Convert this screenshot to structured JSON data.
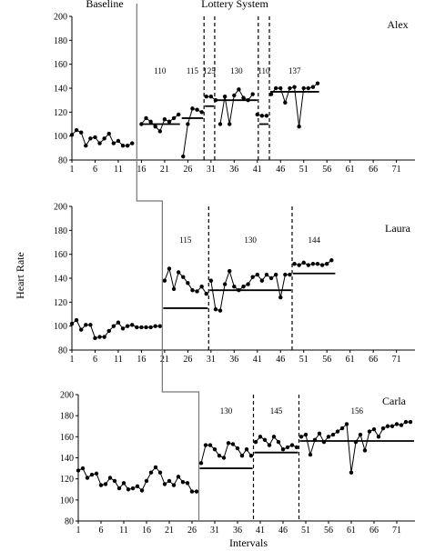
{
  "header": {
    "baseline": "Baseline",
    "phase": "Lottery System"
  },
  "ylabel": "Heart Rate",
  "xlabel": "Intervals",
  "chart_data": [
    {
      "type": "line",
      "participant": "Alex",
      "xlim": [
        1,
        75
      ],
      "ylim": [
        80,
        200
      ],
      "xticks": [
        1,
        6,
        11,
        16,
        21,
        26,
        31,
        36,
        41,
        46,
        51,
        56,
        61,
        66,
        71
      ],
      "yticks": [
        80,
        100,
        120,
        140,
        160,
        180,
        200
      ],
      "baseline": {
        "x": [
          1,
          2,
          3,
          4,
          5,
          6,
          7,
          8,
          9,
          10,
          11,
          12,
          13,
          14
        ],
        "y": [
          101,
          105,
          103,
          92,
          98,
          99,
          94,
          98,
          102,
          94,
          96,
          92,
          92,
          94
        ]
      },
      "phase_change": 15,
      "segments": [
        {
          "x": [
            16,
            17,
            18,
            19,
            20,
            21,
            22,
            23,
            24
          ],
          "y": [
            110,
            115,
            112,
            108,
            104,
            114,
            112,
            115,
            118
          ]
        },
        {
          "x": [
            25,
            26,
            27,
            28,
            29
          ],
          "y": [
            83,
            110,
            123,
            122,
            120
          ]
        },
        {
          "x": [
            30,
            31,
            32
          ],
          "y": [
            133,
            133,
            130
          ]
        },
        {
          "x": [
            33,
            34,
            35,
            36,
            37,
            38,
            39,
            40
          ],
          "y": [
            110,
            133,
            110,
            134,
            139,
            132,
            130,
            135
          ]
        },
        {
          "x": [
            41,
            42,
            43
          ],
          "y": [
            118,
            117,
            117
          ]
        },
        {
          "x": [
            44,
            45,
            46,
            47,
            48,
            49,
            50,
            51,
            52,
            53,
            54
          ],
          "y": [
            135,
            140,
            140,
            128,
            140,
            141,
            108,
            140,
            140,
            141,
            144
          ]
        }
      ],
      "criterion_lines": [
        29.5,
        31.8,
        41.2,
        43.6
      ],
      "criteria": [
        {
          "value": 110,
          "label": "110",
          "x": [
            15.5,
            24.5
          ]
        },
        {
          "value": 115,
          "label": "115",
          "x": [
            24.5,
            29.5
          ]
        },
        {
          "value": 125,
          "label": "125",
          "x": [
            29.5,
            31.8
          ]
        },
        {
          "value": 130,
          "label": "130",
          "x": [
            31.8,
            41.2
          ]
        },
        {
          "value": 110,
          "label": "110",
          "x": [
            41.2,
            43.6
          ]
        },
        {
          "value": 137,
          "label": "137",
          "x": [
            43.6,
            54.5
          ]
        }
      ]
    },
    {
      "type": "line",
      "participant": "Laura",
      "xlim": [
        1,
        75
      ],
      "ylim": [
        80,
        200
      ],
      "xticks": [
        1,
        6,
        11,
        16,
        21,
        26,
        31,
        36,
        41,
        46,
        51,
        56,
        61,
        66,
        71
      ],
      "yticks": [
        80,
        100,
        120,
        140,
        160,
        180,
        200
      ],
      "baseline": {
        "x": [
          1,
          2,
          3,
          4,
          5,
          6,
          7,
          8,
          9,
          10,
          11,
          12,
          13,
          14,
          15,
          16,
          17,
          18,
          19,
          20
        ],
        "y": [
          102,
          105,
          97,
          101,
          101,
          90,
          91,
          91,
          96,
          100,
          103,
          98,
          100,
          101,
          99,
          99,
          99,
          99,
          100,
          100
        ]
      },
      "phase_change": 20.5,
      "segments": [
        {
          "x": [
            21,
            22,
            23,
            24,
            25,
            26,
            27,
            28,
            29,
            30
          ],
          "y": [
            138,
            148,
            131,
            145,
            141,
            136,
            130,
            129,
            133,
            127
          ]
        },
        {
          "x": [
            31,
            32,
            33,
            34,
            35,
            36,
            37,
            38,
            39,
            40,
            41,
            42,
            43,
            44,
            45,
            46,
            47,
            48
          ],
          "y": [
            138,
            114,
            113,
            135,
            146,
            133,
            130,
            133,
            135,
            141,
            143,
            138,
            143,
            140,
            143,
            124,
            143,
            143
          ]
        },
        {
          "x": [
            49,
            50,
            51,
            52,
            53,
            54,
            55,
            56,
            57
          ],
          "y": [
            152,
            151,
            153,
            151,
            152,
            152,
            151,
            152,
            155
          ]
        }
      ],
      "criterion_lines": [
        30.5,
        48.5
      ],
      "criteria": [
        {
          "value": 115,
          "label": "115",
          "x": [
            20.5,
            30.5
          ]
        },
        {
          "value": 130,
          "label": "130",
          "x": [
            30.5,
            48.5
          ]
        },
        {
          "value": 144,
          "label": "144",
          "x": [
            48.5,
            58
          ]
        }
      ]
    },
    {
      "type": "line",
      "participant": "Carla",
      "xlim": [
        1,
        75
      ],
      "ylim": [
        80,
        200
      ],
      "xticks": [
        1,
        6,
        11,
        16,
        21,
        26,
        31,
        36,
        41,
        46,
        51,
        56,
        61,
        66,
        71
      ],
      "yticks": [
        80,
        100,
        120,
        140,
        160,
        180,
        200
      ],
      "baseline": {
        "x": [
          1,
          2,
          3,
          4,
          5,
          6,
          7,
          8,
          9,
          10,
          11,
          12,
          13,
          14,
          15,
          16,
          17,
          18,
          19,
          20,
          21,
          22,
          23,
          24,
          25,
          26,
          27
        ],
        "y": [
          128,
          130,
          121,
          124,
          125,
          114,
          115,
          121,
          118,
          111,
          116,
          110,
          111,
          113,
          109,
          118,
          126,
          131,
          126,
          115,
          118,
          114,
          122,
          117,
          116,
          108,
          108
        ]
      },
      "phase_change": 27.5,
      "segments": [
        {
          "x": [
            28,
            29,
            30,
            31,
            32,
            33,
            34,
            35,
            36,
            37,
            38,
            39
          ],
          "y": [
            135,
            152,
            152,
            148,
            142,
            140,
            154,
            153,
            149,
            142,
            148,
            142
          ]
        },
        {
          "x": [
            40,
            41,
            42,
            43,
            44,
            45,
            46,
            47,
            48,
            49
          ],
          "y": [
            155,
            160,
            157,
            152,
            160,
            155,
            148,
            150,
            152,
            150
          ]
        },
        {
          "x": [
            50,
            51,
            52,
            53,
            54,
            55,
            56,
            57,
            58,
            59,
            60,
            61,
            62,
            63,
            64,
            65,
            66,
            67,
            68,
            69,
            70,
            71,
            72,
            73,
            74
          ],
          "y": [
            160,
            162,
            143,
            157,
            163,
            155,
            160,
            162,
            165,
            168,
            172,
            126,
            155,
            162,
            147,
            165,
            167,
            160,
            168,
            170,
            170,
            172,
            171,
            174,
            174
          ]
        }
      ],
      "criterion_lines": [
        39.5,
        49.5
      ],
      "criteria": [
        {
          "value": 130,
          "label": "130",
          "x": [
            27.5,
            39.5
          ]
        },
        {
          "value": 145,
          "label": "145",
          "x": [
            39.5,
            49.5
          ]
        },
        {
          "value": 156,
          "label": "156",
          "x": [
            49.5,
            75
          ]
        }
      ]
    }
  ]
}
